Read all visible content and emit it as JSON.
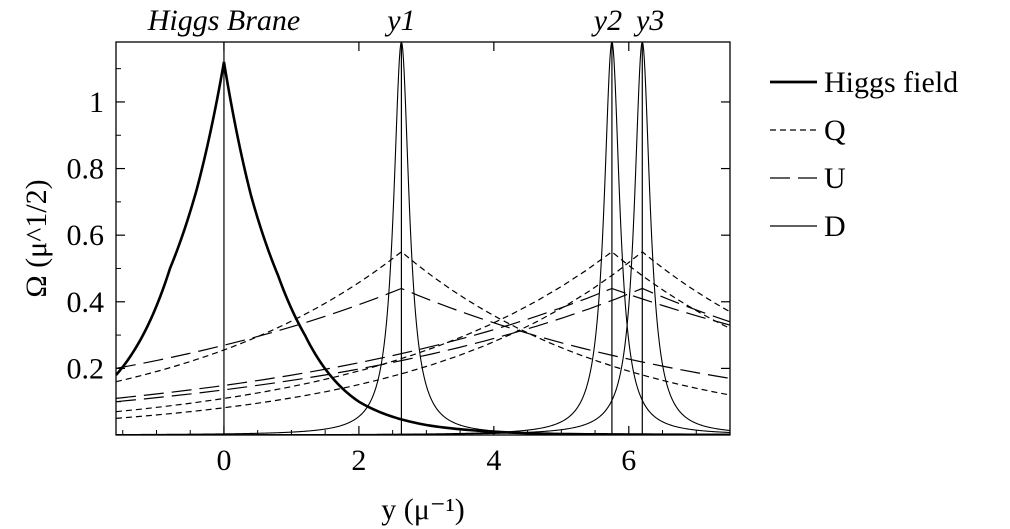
{
  "chart_data": {
    "type": "line",
    "xlabel": "y (μ⁻¹)",
    "ylabel": "Ω (μ^1/2)",
    "xlim": [
      -1.6,
      7.5
    ],
    "ylim": [
      0,
      1.18
    ],
    "x_ticks": [
      0,
      2,
      4,
      6
    ],
    "y_ticks": [
      0.2,
      0.4,
      0.6,
      0.8,
      1
    ],
    "grid": false,
    "legend_position": "right",
    "annotations": [
      {
        "text": "Higgs Brane",
        "x": 0
      },
      {
        "text": "y1",
        "x": 2.63
      },
      {
        "text": "y2",
        "x": 5.75
      },
      {
        "text": "y3",
        "x": 6.2
      }
    ],
    "brane_lines_x": [
      0,
      2.63,
      5.75,
      6.2
    ],
    "series": [
      {
        "name": "Higgs field",
        "style": "thick",
        "x": [
          -1.6,
          -1.2,
          -0.8,
          -0.4,
          0,
          0.4,
          0.8,
          1.2,
          2,
          3,
          4,
          5,
          7.5
        ],
        "y": [
          0.18,
          0.3,
          0.5,
          0.74,
          1.12,
          0.72,
          0.48,
          0.3,
          0.1,
          0.03,
          0.01,
          0.003,
          0
        ]
      },
      {
        "name": "Q",
        "style": "short-dash",
        "curves": [
          {
            "x": [
              -1.6,
              2.63,
              7.5
            ],
            "y": [
              0.16,
              0.55,
              0.12
            ]
          },
          {
            "x": [
              -1.6,
              5.75,
              7.5
            ],
            "y": [
              0.07,
              0.55,
              0.32
            ]
          },
          {
            "x": [
              -1.6,
              6.2,
              7.5
            ],
            "y": [
              0.05,
              0.55,
              0.37
            ]
          }
        ]
      },
      {
        "name": "U",
        "style": "long-dash",
        "curves": [
          {
            "x": [
              -1.6,
              2.63,
              7.5
            ],
            "y": [
              0.2,
              0.44,
              0.17
            ]
          },
          {
            "x": [
              -1.6,
              5.75,
              7.5
            ],
            "y": [
              0.11,
              0.44,
              0.33
            ]
          },
          {
            "x": [
              -1.6,
              6.2,
              7.5
            ],
            "y": [
              0.1,
              0.44,
              0.34
            ]
          }
        ]
      },
      {
        "name": "D",
        "style": "thin",
        "peaks": [
          2.63,
          5.75,
          6.2
        ],
        "peak_height": 1.18,
        "width": 0.14
      }
    ]
  }
}
